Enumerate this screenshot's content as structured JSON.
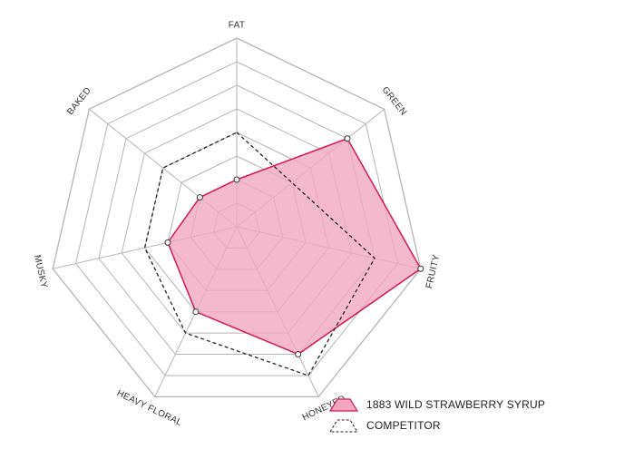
{
  "chart_data": {
    "type": "radar",
    "axes": [
      "FAT",
      "GREEN",
      "FRUITY",
      "HONEYED",
      "HEAVY FLORAL",
      "MUSKY",
      "BAKED"
    ],
    "scale": [
      0,
      8
    ],
    "rings": 8,
    "series": [
      {
        "name": "1883 WILD STRAWBERRY SYRUP",
        "values": [
          2,
          6,
          8,
          6,
          4,
          3,
          2
        ],
        "style": "filled",
        "stroke": "#d4185a",
        "fill": "#f2a7c0"
      },
      {
        "name": "COMPETITOR",
        "values": [
          4,
          3,
          6,
          7,
          5,
          4,
          4
        ],
        "style": "dashed",
        "stroke": "#222222"
      }
    ],
    "grid": true,
    "legend_position": "bottom-right"
  }
}
